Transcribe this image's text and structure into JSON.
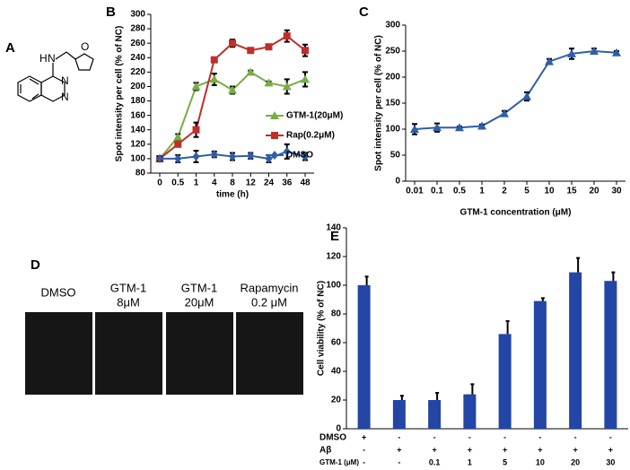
{
  "panel_letters": [
    "A",
    "B",
    "C",
    "D",
    "E"
  ],
  "structure_labels": [
    "H",
    "N",
    "N",
    "N",
    "O"
  ],
  "micrographs": [
    [
      "DMSO"
    ],
    [
      "GTM-1",
      "8μM"
    ],
    [
      "GTM-1",
      "20μM"
    ],
    [
      "Rapamycin",
      "0.2 μM"
    ]
  ],
  "chart_data": [
    {
      "type": "line",
      "y_label": "Spot intensity per cell (% of NC)",
      "x_label": "time (h)",
      "categories": [
        "0",
        "0.5",
        "1",
        "4",
        "8",
        "12",
        "24",
        "36",
        "48"
      ],
      "ylim": [
        80,
        300
      ],
      "yticks": [
        80,
        100,
        120,
        140,
        160,
        180,
        200,
        220,
        240,
        260,
        280,
        300
      ],
      "series": [
        {
          "name": "GTM-1(20μM)",
          "color": "#78ad45",
          "marker": "triangle",
          "values": [
            100,
            130,
            200,
            210,
            195,
            220,
            205,
            200,
            210
          ],
          "errors": [
            2,
            4,
            5,
            8,
            5,
            2,
            2,
            10,
            10
          ]
        },
        {
          "name": "Rap(0.2μM)",
          "color": "#bf2e28",
          "marker": "square",
          "values": [
            100,
            120,
            140,
            237,
            260,
            250,
            255,
            270,
            250
          ],
          "errors": [
            2,
            3,
            10,
            2,
            5,
            3,
            2,
            8,
            8
          ]
        },
        {
          "name": "DMSO",
          "color": "#2f5ea8",
          "marker": "diamond",
          "values": [
            100,
            100,
            103,
            106,
            103,
            104,
            100,
            110,
            103
          ],
          "errors": [
            3,
            5,
            8,
            4,
            5,
            4,
            5,
            10,
            5
          ]
        }
      ]
    },
    {
      "type": "line",
      "y_label": "Spot intensity per cell (% of NC)",
      "x_label": "GTM-1 concentration (μM)",
      "categories": [
        "0.01",
        "0.1",
        "0.5",
        "1",
        "2",
        "5",
        "10",
        "15",
        "20",
        "30"
      ],
      "ylim": [
        0,
        300
      ],
      "yticks": [
        0,
        50,
        100,
        150,
        200,
        250,
        300
      ],
      "series": [
        {
          "color": "#2f5ea8",
          "marker": "triangle",
          "values": [
            100,
            103,
            103,
            106,
            130,
            163,
            230,
            245,
            250,
            247
          ],
          "errors": [
            10,
            8,
            2,
            3,
            5,
            8,
            5,
            10,
            5,
            3
          ]
        }
      ]
    },
    {
      "type": "bar",
      "y_label": "Cell viability (% of NC)",
      "color": "#2346a6",
      "values": [
        100,
        20,
        20,
        24,
        66,
        89,
        109,
        103
      ],
      "errors": [
        6,
        3,
        5,
        7,
        9,
        2,
        10,
        6
      ],
      "ylim": [
        0,
        140
      ],
      "yticks": [
        0,
        20,
        40,
        60,
        80,
        100,
        120,
        140
      ],
      "condition_rows": [
        {
          "label": "DMSO",
          "cells": [
            "+",
            "-",
            "-",
            "-",
            "-",
            "-",
            "-",
            "-"
          ]
        },
        {
          "label": "Aβ",
          "cells": [
            "-",
            "+",
            "+",
            "+",
            "+",
            "+",
            "+",
            "+"
          ]
        },
        {
          "label": "GTM-1 (μM)",
          "cells": [
            "-",
            "-",
            "0.1",
            "1",
            "5",
            "10",
            "20",
            "30"
          ]
        }
      ]
    }
  ]
}
